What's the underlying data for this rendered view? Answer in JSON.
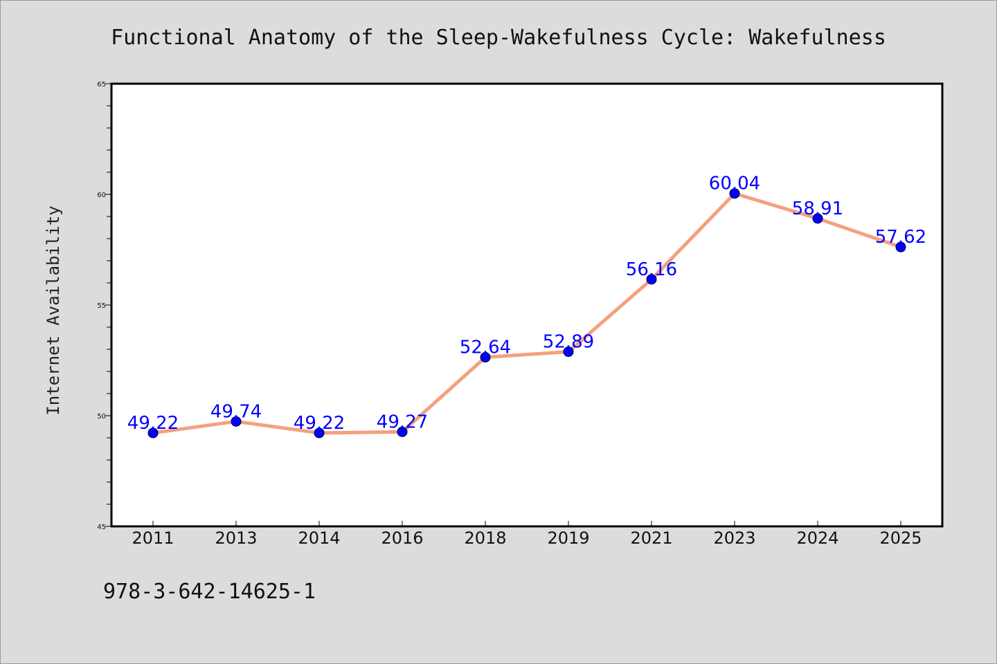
{
  "footer_text": "978-3-642-14625-1",
  "colors": {
    "background": "#dcdcdc",
    "plot_background": "#ffffff",
    "line": "#f4a07f",
    "marker": "#0000ff",
    "data_label": "#0000ff"
  },
  "chart_data": {
    "type": "line",
    "title": "Functional Anatomy of the Sleep-Wakefulness Cycle: Wakefulness",
    "xlabel": "",
    "ylabel": "Internet Availability",
    "categories": [
      "2011",
      "2013",
      "2014",
      "2016",
      "2018",
      "2019",
      "2021",
      "2023",
      "2024",
      "2025"
    ],
    "series": [
      {
        "values": [
          49.22,
          49.74,
          49.22,
          49.27,
          52.64,
          52.89,
          56.16,
          60.04,
          58.91,
          57.62
        ]
      }
    ],
    "data_labels": [
      "49.22",
      "49.74",
      "49.22",
      "49.27",
      "52.64",
      "52.89",
      "56.16",
      "60.04",
      "58.91",
      "57.62"
    ],
    "ylim": [
      45,
      65
    ],
    "yticks": [
      "45",
      "50",
      "55",
      "60",
      "65"
    ],
    "grid": false,
    "legend": "none"
  }
}
